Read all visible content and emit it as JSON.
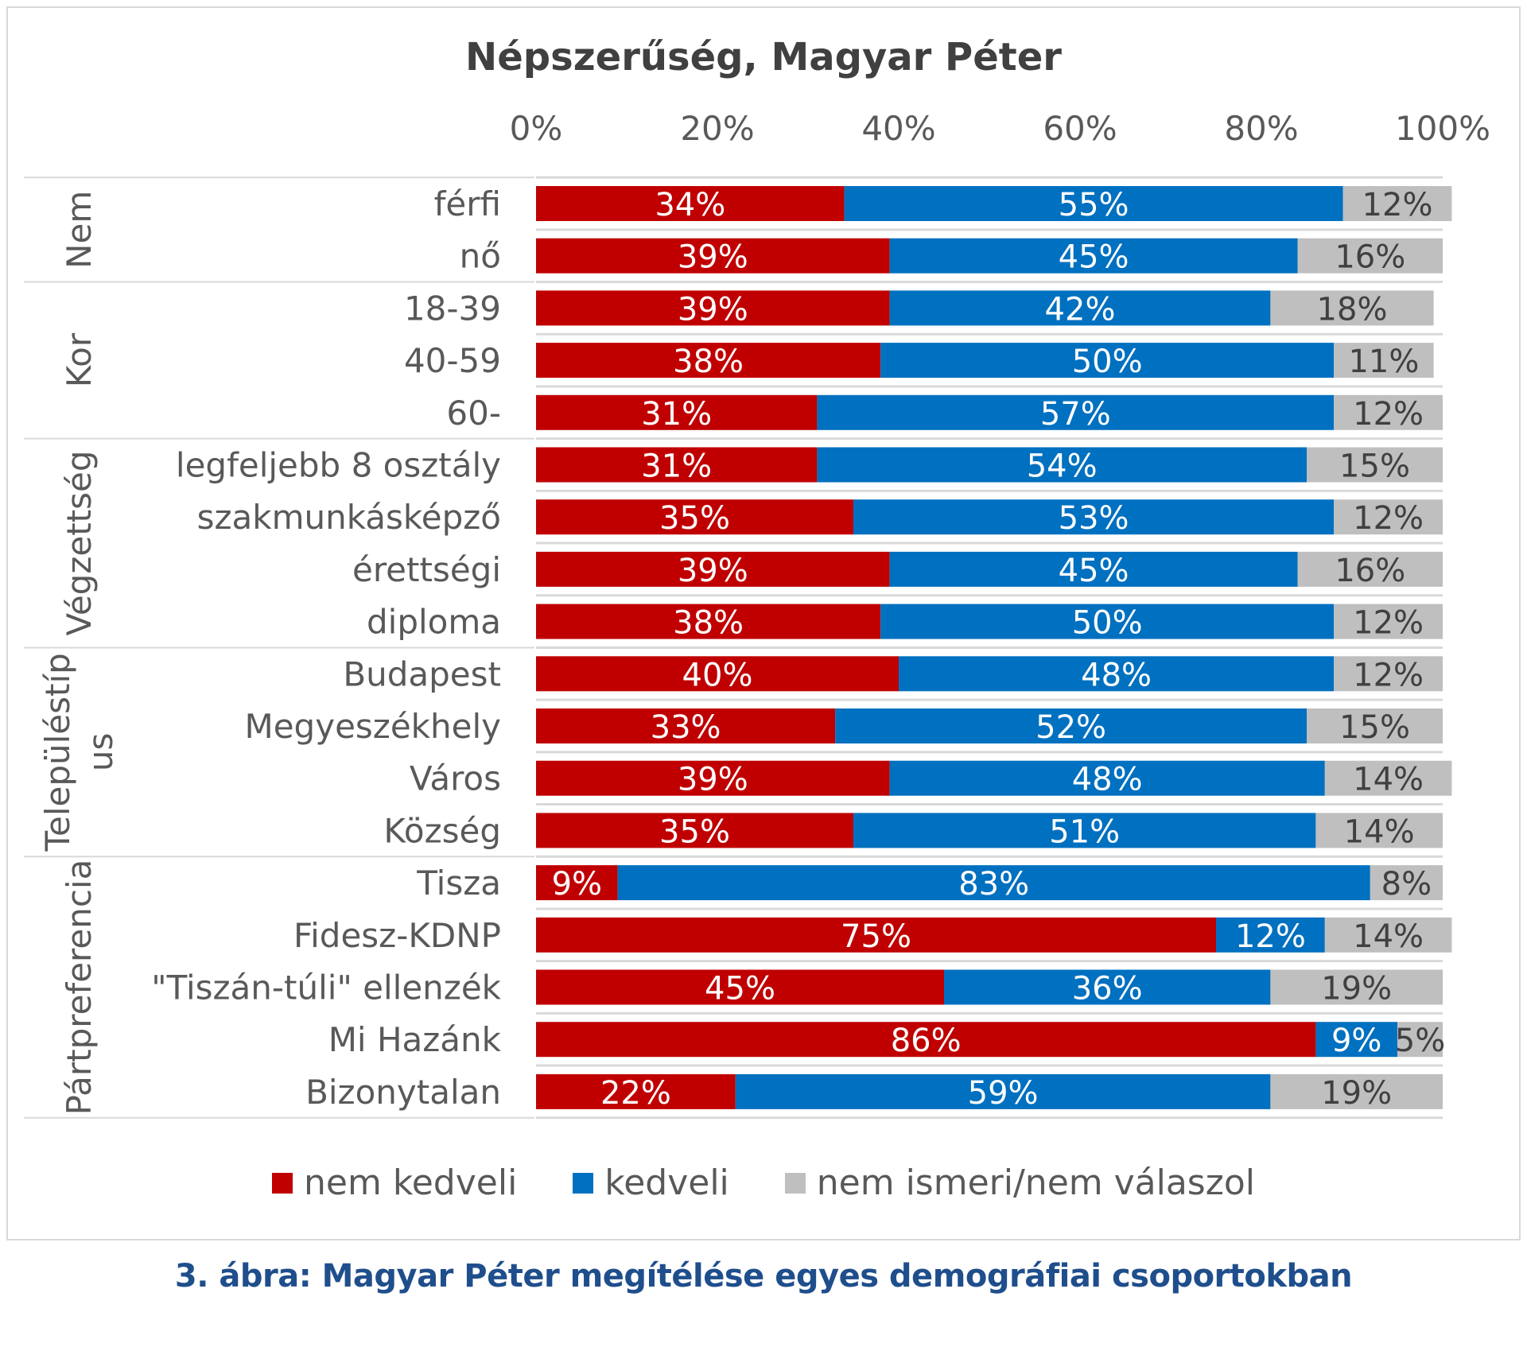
{
  "chart_data": {
    "type": "bar",
    "orientation": "horizontal",
    "stacked": true,
    "title": "Népszerűség, Magyar Péter",
    "x_ticks": [
      "0%",
      "20%",
      "40%",
      "60%",
      "80%",
      "100%"
    ],
    "xlim": [
      0,
      100
    ],
    "legend_position": "bottom",
    "groups": [
      {
        "label": "Nem",
        "rows": [
          0,
          1
        ]
      },
      {
        "label": "Kor",
        "rows": [
          2,
          3,
          4
        ]
      },
      {
        "label": "Végzettség",
        "rows": [
          5,
          6,
          7,
          8
        ]
      },
      {
        "label_lines": [
          "Településtíp",
          "us"
        ],
        "rows": [
          9,
          10,
          11,
          12
        ]
      },
      {
        "label": "Pártpreferencia",
        "rows": [
          13,
          14,
          15,
          16,
          17
        ]
      }
    ],
    "categories": [
      "férfi",
      "nő",
      "18-39",
      "40-59",
      "60-",
      "legfeljebb 8 osztály",
      "szakmunkásképző",
      "érettségi",
      "diploma",
      "Budapest",
      "Megyeszékhely",
      "Város",
      "Község",
      "Tisza",
      "Fidesz-KDNP",
      "\"Tiszán-túli\" ellenzék",
      "Mi Hazánk",
      "Bizonytalan"
    ],
    "series": [
      {
        "name": "nem kedveli",
        "color": "#c00000",
        "values": [
          34,
          39,
          39,
          38,
          31,
          31,
          35,
          39,
          38,
          40,
          33,
          39,
          35,
          9,
          75,
          45,
          86,
          22
        ],
        "labels": [
          "34%",
          "39%",
          "39%",
          "38%",
          "31%",
          "31%",
          "35%",
          "39%",
          "38%",
          "40%",
          "33%",
          "39%",
          "35%",
          "9%",
          "75%",
          "45%",
          "86%",
          "22%"
        ]
      },
      {
        "name": "kedveli",
        "color": "#0070c0",
        "values": [
          55,
          45,
          42,
          50,
          57,
          54,
          53,
          45,
          50,
          48,
          52,
          48,
          51,
          83,
          12,
          36,
          9,
          59
        ],
        "labels": [
          "55%",
          "45%",
          "42%",
          "50%",
          "57%",
          "54%",
          "53%",
          "45%",
          "50%",
          "48%",
          "52%",
          "48%",
          "51%",
          "83%",
          "12%",
          "36%",
          "9%",
          "59%"
        ]
      },
      {
        "name": "nem ismeri/nem válaszol",
        "color": "#bfbfbf",
        "values": [
          12,
          16,
          18,
          11,
          12,
          15,
          12,
          16,
          12,
          12,
          15,
          14,
          14,
          8,
          14,
          19,
          5,
          19
        ],
        "labels": [
          "12%",
          "16%",
          "18%",
          "11%",
          "12%",
          "15%",
          "12%",
          "16%",
          "12%",
          "12%",
          "15%",
          "14%",
          "14%",
          "8%",
          "14%",
          "19%",
          "5%",
          "19%"
        ]
      }
    ]
  },
  "caption": "3. ábra: Magyar Péter megítélése egyes demográfiai csoportokban"
}
